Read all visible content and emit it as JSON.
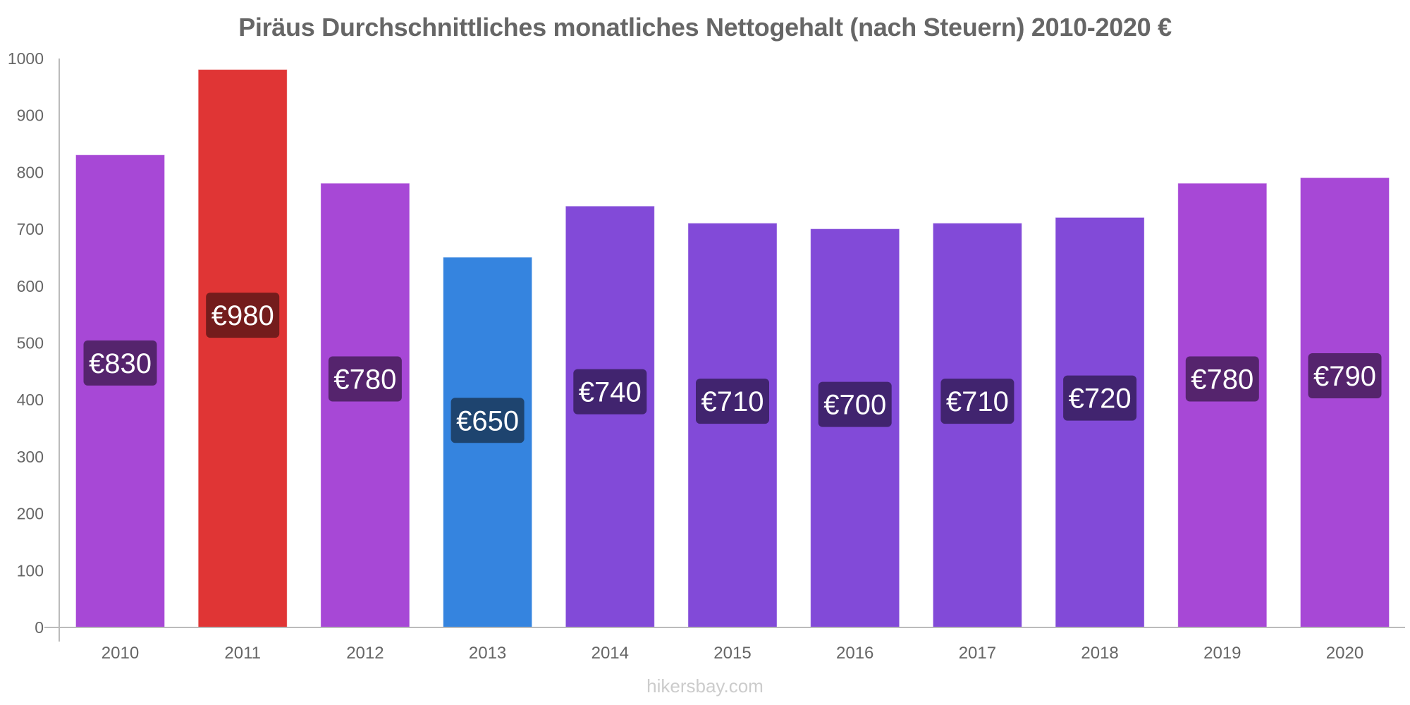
{
  "chart_data": {
    "type": "bar",
    "title": "Piräus Durchschnittliches monatliches Nettogehalt (nach Steuern) 2010-2020 €",
    "xlabel": "",
    "ylabel": "",
    "ylim": [
      0,
      1000
    ],
    "yticks": [
      0,
      100,
      200,
      300,
      400,
      500,
      600,
      700,
      800,
      900,
      1000
    ],
    "grid": false,
    "legend": "none",
    "categories": [
      "2010",
      "2011",
      "2012",
      "2013",
      "2014",
      "2015",
      "2016",
      "2017",
      "2018",
      "2019",
      "2020"
    ],
    "values": [
      830,
      980,
      780,
      650,
      740,
      710,
      700,
      710,
      720,
      780,
      790
    ],
    "value_labels": [
      "€830",
      "€980",
      "€780",
      "€650",
      "€740",
      "€710",
      "€700",
      "€710",
      "€720",
      "€780",
      "€790"
    ],
    "bar_colors": [
      "#A748D6",
      "#E03535",
      "#A748D6",
      "#3584DF",
      "#824AD8",
      "#824AD8",
      "#824AD8",
      "#824AD8",
      "#824AD8",
      "#A748D6",
      "#A748D6"
    ],
    "label_colors": [
      "#55246D",
      "#741C1C",
      "#55246D",
      "#1E446F",
      "#41246F",
      "#41246F",
      "#41246F",
      "#41246F",
      "#41246F",
      "#55246D",
      "#55246D"
    ]
  },
  "footer": {
    "source": "hikersbay.com"
  }
}
